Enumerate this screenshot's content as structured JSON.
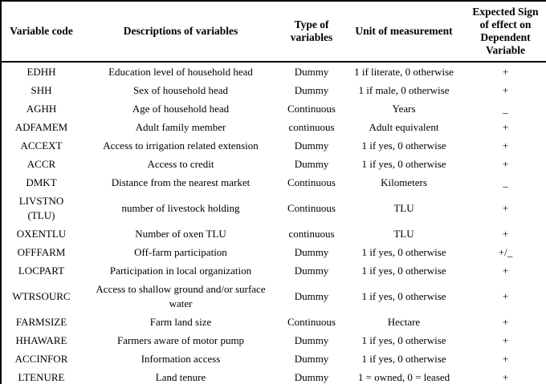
{
  "table": {
    "columns": [
      {
        "label": "Variable code"
      },
      {
        "label": "Descriptions of variables"
      },
      {
        "label": "Type of variables"
      },
      {
        "label": "Unit of measurement"
      },
      {
        "label": "Expected Sign of effect on Dependent Variable"
      }
    ],
    "rows": [
      {
        "code": "EDHH",
        "description": "Education level of household head",
        "type": "Dummy",
        "unit": "1 if literate, 0 otherwise",
        "sign": "+"
      },
      {
        "code": "SHH",
        "description": "Sex of household head",
        "type": "Dummy",
        "unit": "1 if male, 0 otherwise",
        "sign": "+"
      },
      {
        "code": "AGHH",
        "description": "Age of household head",
        "type": "Continuous",
        "unit": "Years",
        "sign": "_"
      },
      {
        "code": "ADFAMEM",
        "description": "Adult family member",
        "type": "continuous",
        "unit": "Adult equivalent",
        "sign": "+"
      },
      {
        "code": "ACCEXT",
        "description": "Access to irrigation related extension",
        "type": "Dummy",
        "unit": "1 if yes, 0 otherwise",
        "sign": "+"
      },
      {
        "code": "ACCR",
        "description": "Access to credit",
        "type": "Dummy",
        "unit": "1 if yes, 0 otherwise",
        "sign": "+"
      },
      {
        "code": "DMKT",
        "description": "Distance from the nearest market",
        "type": "Continuous",
        "unit": "Kilometers",
        "sign": "_"
      },
      {
        "code": "LIVSTNO (TLU)",
        "description": "number of livestock holding",
        "type": "Continuous",
        "unit": "TLU",
        "sign": "+"
      },
      {
        "code": "OXENTLU",
        "description": "Number of oxen TLU",
        "type": "continuous",
        "unit": "TLU",
        "sign": "+"
      },
      {
        "code": "OFFFARM",
        "description": "Off-farm participation",
        "type": "Dummy",
        "unit": "1 if yes, 0 otherwise",
        "sign": "+/_"
      },
      {
        "code": "LOCPART",
        "description": "Participation in local organization",
        "type": "Dummy",
        "unit": "1 if yes, 0 otherwise",
        "sign": "+"
      },
      {
        "code": "WTRSOURC",
        "description": "Access to shallow ground and/or surface water",
        "type": "Dummy",
        "unit": "1 if yes, 0 otherwise",
        "sign": "+"
      },
      {
        "code": "FARMSIZE",
        "description": "Farm land size",
        "type": "Continuous",
        "unit": "Hectare",
        "sign": "+"
      },
      {
        "code": "HHAWARE",
        "description": "Farmers aware of motor pump",
        "type": "Dummy",
        "unit": "1 if yes, 0 otherwise",
        "sign": "+"
      },
      {
        "code": "ACCINFOR",
        "description": "Information access",
        "type": "Dummy",
        "unit": "1 if yes, 0 otherwise",
        "sign": "+"
      },
      {
        "code": "LTENURE",
        "description": "Land tenure",
        "type": "Dummy",
        "unit": "1 = owned, 0 = leased",
        "sign": "+"
      }
    ]
  }
}
